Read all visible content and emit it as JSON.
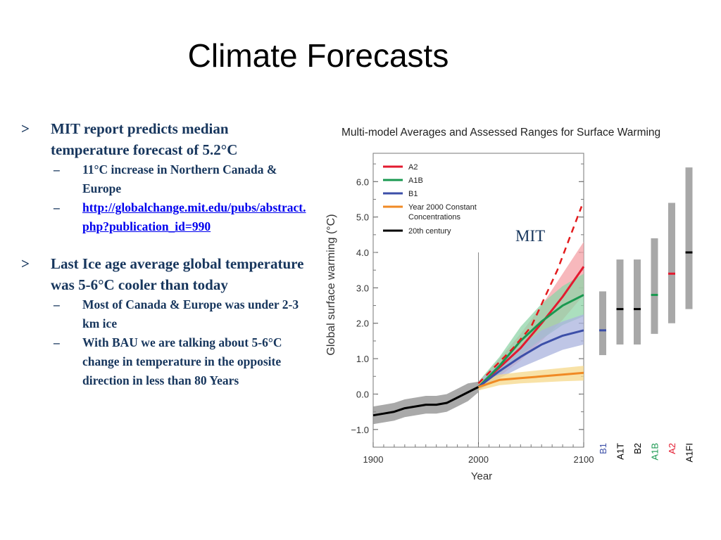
{
  "slide": {
    "title": "Climate Forecasts",
    "bullets": [
      {
        "text": "MIT report predicts median temperature forecast of 5.2°C",
        "children": [
          {
            "text": "11°C increase in Northern Canada & Europe"
          },
          {
            "text": "http://globalchange.mit.edu/pubs/abstract.php?publication_id=990",
            "is_link": true
          }
        ]
      },
      {
        "text": "Last Ice age average global temperature was 5-6°C cooler than today",
        "children": [
          {
            "text": "Most of Canada & Europe was under 2-3 km ice"
          },
          {
            "text": "With BAU we are talking about 5-6°C change in temperature in the opposite direction in less than 80 Years"
          }
        ]
      }
    ],
    "marker_level1": ">",
    "marker_level2": "–"
  },
  "chart_data": {
    "type": "line",
    "title": "Multi-model Averages and Assessed Ranges for Surface Warming",
    "xlabel": "Year",
    "ylabel": "Global surface warming (°C)",
    "xlim": [
      1900,
      2100
    ],
    "ylim": [
      -1.5,
      6.8
    ],
    "xticks": [
      1900,
      2000,
      2100
    ],
    "yticks": [
      -1.0,
      0.0,
      1.0,
      2.0,
      3.0,
      4.0,
      5.0,
      6.0
    ],
    "ytick_labels": [
      "−1.0",
      "0.0",
      "1.0",
      "2.0",
      "3.0",
      "4.0",
      "5.0",
      "6.0"
    ],
    "legend_position": "top-left",
    "series": [
      {
        "name": "20th century",
        "color": "#000000",
        "band_color": "#8c8c8c",
        "x": [
          1900,
          1910,
          1920,
          1930,
          1940,
          1950,
          1960,
          1970,
          1980,
          1990,
          2000
        ],
        "y": [
          -0.6,
          -0.55,
          -0.5,
          -0.4,
          -0.35,
          -0.3,
          -0.3,
          -0.25,
          -0.1,
          0.05,
          0.2
        ],
        "lower": [
          -0.85,
          -0.8,
          -0.75,
          -0.65,
          -0.6,
          -0.55,
          -0.55,
          -0.5,
          -0.35,
          -0.2,
          0.05
        ],
        "upper": [
          -0.35,
          -0.3,
          -0.25,
          -0.15,
          -0.1,
          -0.05,
          -0.05,
          0.0,
          0.15,
          0.3,
          0.35
        ]
      },
      {
        "name": "A2",
        "color": "#e31a2f",
        "band_color": "#f4a0a6",
        "x": [
          2000,
          2020,
          2040,
          2060,
          2080,
          2100
        ],
        "y": [
          0.2,
          0.75,
          1.3,
          2.0,
          2.75,
          3.6
        ],
        "lower": [
          0.1,
          0.5,
          0.95,
          1.5,
          2.1,
          2.8
        ],
        "upper": [
          0.35,
          1.0,
          1.7,
          2.5,
          3.4,
          4.3
        ]
      },
      {
        "name": "A1B",
        "color": "#1a9850",
        "band_color": "#8fd4a8",
        "x": [
          2000,
          2020,
          2040,
          2060,
          2080,
          2100
        ],
        "y": [
          0.2,
          0.8,
          1.5,
          2.05,
          2.5,
          2.8
        ],
        "lower": [
          0.1,
          0.55,
          1.1,
          1.55,
          1.95,
          2.2
        ],
        "upper": [
          0.35,
          1.05,
          1.9,
          2.55,
          3.05,
          3.4
        ]
      },
      {
        "name": "B1",
        "color": "#3c4fa8",
        "band_color": "#aab3de",
        "x": [
          2000,
          2020,
          2040,
          2060,
          2080,
          2100
        ],
        "y": [
          0.2,
          0.65,
          1.05,
          1.4,
          1.65,
          1.8
        ],
        "lower": [
          0.1,
          0.45,
          0.75,
          1.0,
          1.25,
          1.4
        ],
        "upper": [
          0.35,
          0.85,
          1.35,
          1.8,
          2.05,
          2.25
        ]
      },
      {
        "name": "Year 2000 Constant Concentrations",
        "color": "#f08a24",
        "band_color": "#f6d88a",
        "x": [
          2000,
          2020,
          2040,
          2060,
          2080,
          2100
        ],
        "y": [
          0.2,
          0.4,
          0.45,
          0.5,
          0.55,
          0.6
        ],
        "lower": [
          0.1,
          0.25,
          0.3,
          0.33,
          0.36,
          0.38
        ],
        "upper": [
          0.35,
          0.55,
          0.62,
          0.68,
          0.74,
          0.8
        ]
      },
      {
        "name": "MIT",
        "color": "#e31a1c",
        "dashed": true,
        "x": [
          2000,
          2033,
          2050,
          2075,
          2098
        ],
        "y": [
          0.3,
          1.3,
          1.9,
          3.5,
          5.3
        ]
      }
    ],
    "assessed_ranges": [
      {
        "scenario": "B1",
        "low": 1.1,
        "high": 2.9,
        "best": 1.8,
        "label_color": "#3c4fa8",
        "best_color": "#3c4fa8"
      },
      {
        "scenario": "A1T",
        "low": 1.4,
        "high": 3.8,
        "best": 2.4,
        "label_color": "#000000",
        "best_color": "#000000"
      },
      {
        "scenario": "B2",
        "low": 1.4,
        "high": 3.8,
        "best": 2.4,
        "label_color": "#000000",
        "best_color": "#000000"
      },
      {
        "scenario": "A1B",
        "low": 1.7,
        "high": 4.4,
        "best": 2.8,
        "label_color": "#1a9850",
        "best_color": "#1a9850"
      },
      {
        "scenario": "A2",
        "low": 2.0,
        "high": 5.4,
        "best": 3.4,
        "label_color": "#e31a2f",
        "best_color": "#e31a2f"
      },
      {
        "scenario": "A1FI",
        "low": 2.4,
        "high": 6.4,
        "best": 4.0,
        "label_color": "#000000",
        "best_color": "#000000"
      }
    ],
    "annotations": [
      {
        "text": "MIT",
        "color": "#17365d"
      }
    ]
  }
}
